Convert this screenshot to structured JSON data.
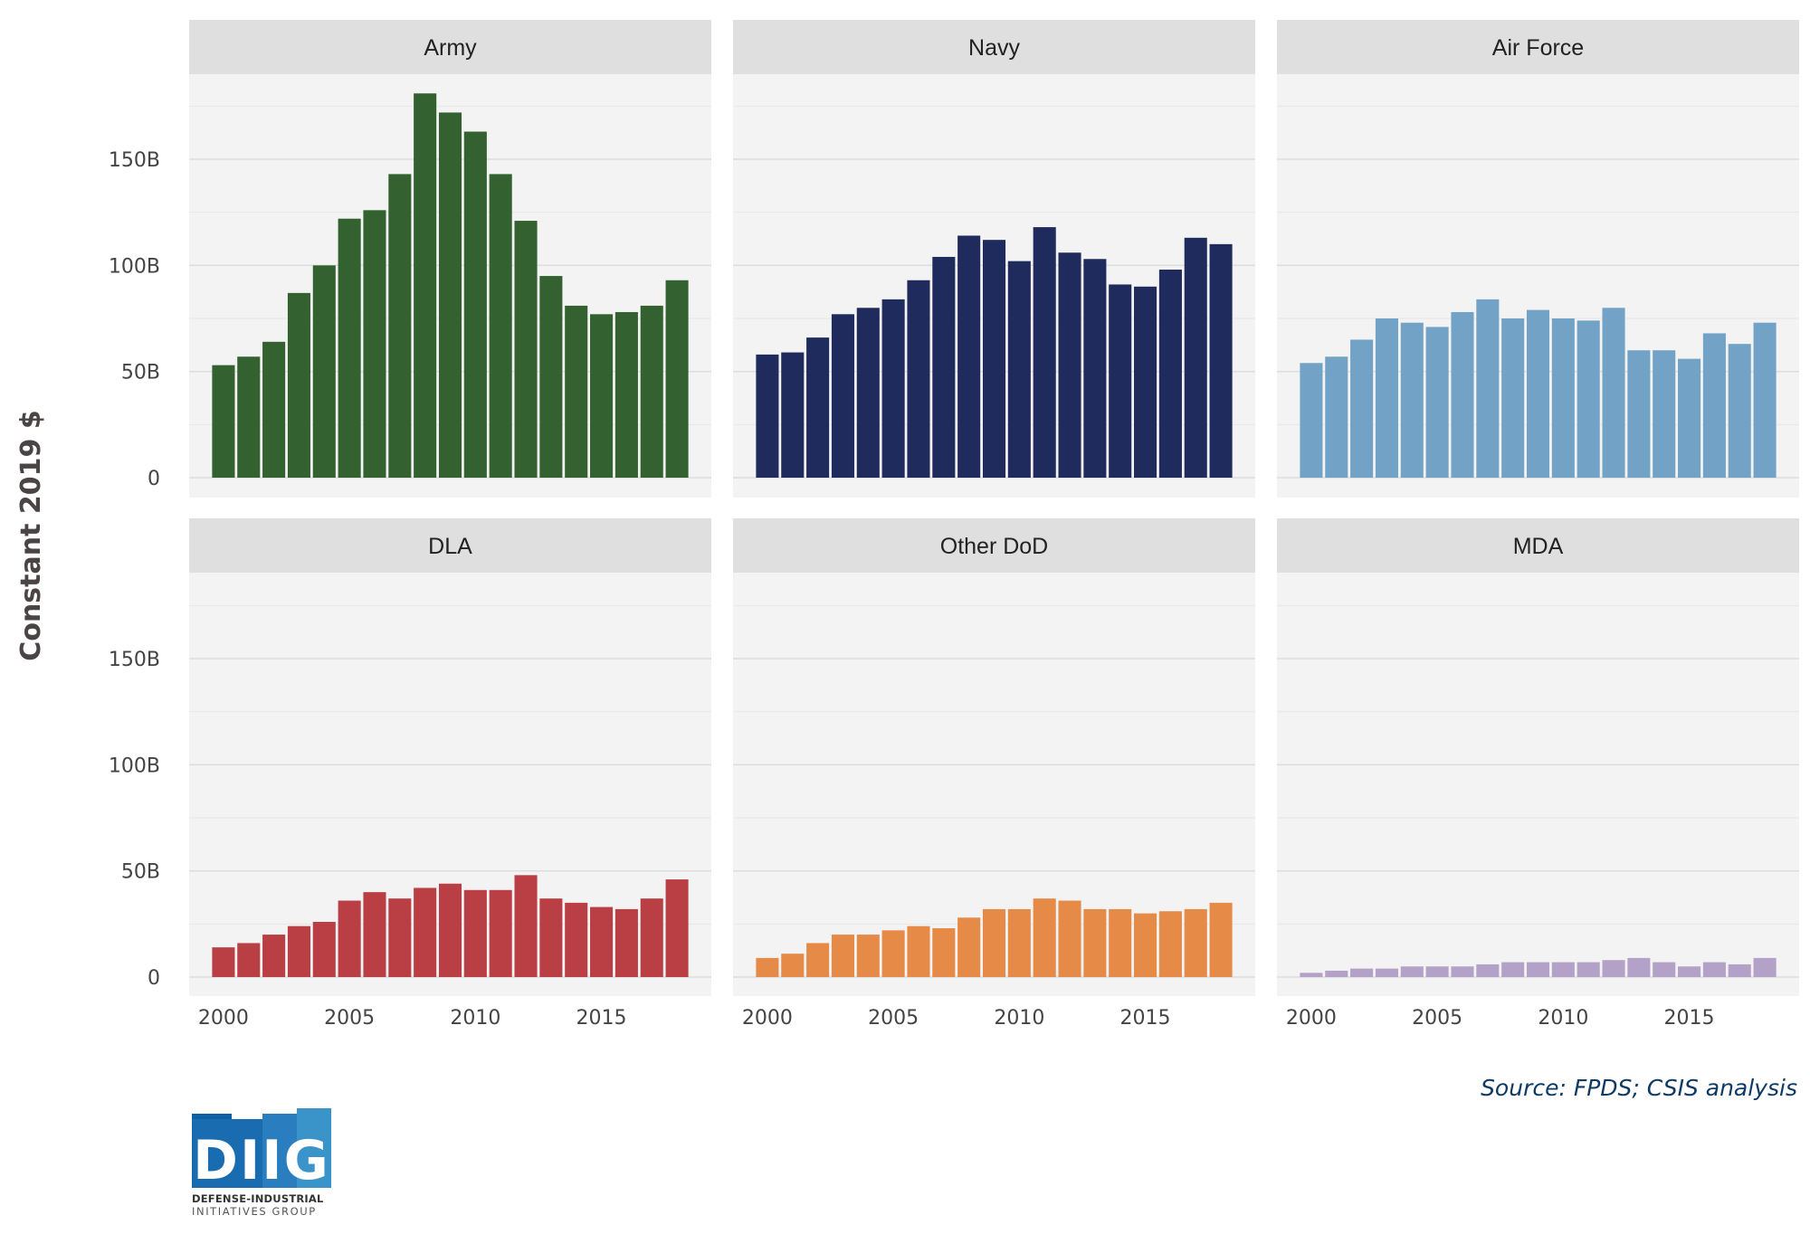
{
  "chart_data": {
    "type": "bar",
    "ylabel": "Constant 2019 $",
    "ylim": [
      0,
      180
    ],
    "y_ticks": [
      {
        "value": 0,
        "label": "0"
      },
      {
        "value": 50,
        "label": "50B"
      },
      {
        "value": 100,
        "label": "100B"
      },
      {
        "value": 150,
        "label": "150B"
      }
    ],
    "x_ticks": [
      2000,
      2005,
      2010,
      2015
    ],
    "x": [
      2000,
      2001,
      2002,
      2003,
      2004,
      2005,
      2006,
      2007,
      2008,
      2009,
      2010,
      2011,
      2012,
      2013,
      2014,
      2015,
      2016,
      2017,
      2018
    ],
    "series": [
      {
        "name": "Army",
        "color": "#336130",
        "values": [
          53,
          57,
          64,
          87,
          100,
          122,
          126,
          143,
          181,
          172,
          163,
          143,
          121,
          95,
          81,
          77,
          78,
          81,
          93
        ]
      },
      {
        "name": "Navy",
        "color": "#1f2b5c",
        "values": [
          58,
          59,
          66,
          77,
          80,
          84,
          93,
          104,
          114,
          112,
          102,
          118,
          106,
          103,
          91,
          90,
          98,
          113,
          110
        ]
      },
      {
        "name": "Air Force",
        "color": "#72a3c6",
        "values": [
          54,
          57,
          65,
          75,
          73,
          71,
          78,
          84,
          75,
          79,
          75,
          74,
          80,
          60,
          60,
          56,
          68,
          63,
          73
        ]
      },
      {
        "name": "DLA",
        "color": "#b93f45",
        "values": [
          14,
          16,
          20,
          24,
          26,
          36,
          40,
          37,
          42,
          44,
          41,
          41,
          48,
          37,
          35,
          33,
          32,
          37,
          46
        ]
      },
      {
        "name": "Other DoD",
        "color": "#e68a48",
        "values": [
          9,
          11,
          16,
          20,
          20,
          22,
          24,
          23,
          28,
          32,
          32,
          37,
          36,
          32,
          32,
          30,
          31,
          32,
          35
        ]
      },
      {
        "name": "MDA",
        "color": "#b4a1c8",
        "values": [
          2,
          3,
          4,
          4,
          5,
          5,
          5,
          6,
          7,
          7,
          7,
          7,
          8,
          9,
          7,
          5,
          7,
          6,
          9
        ]
      }
    ]
  },
  "source_note": "Source: FPDS; CSIS analysis",
  "logo": {
    "mark": "DIIG",
    "line1": "DEFENSE-INDUSTRIAL",
    "line2": "INITIATIVES GROUP"
  }
}
